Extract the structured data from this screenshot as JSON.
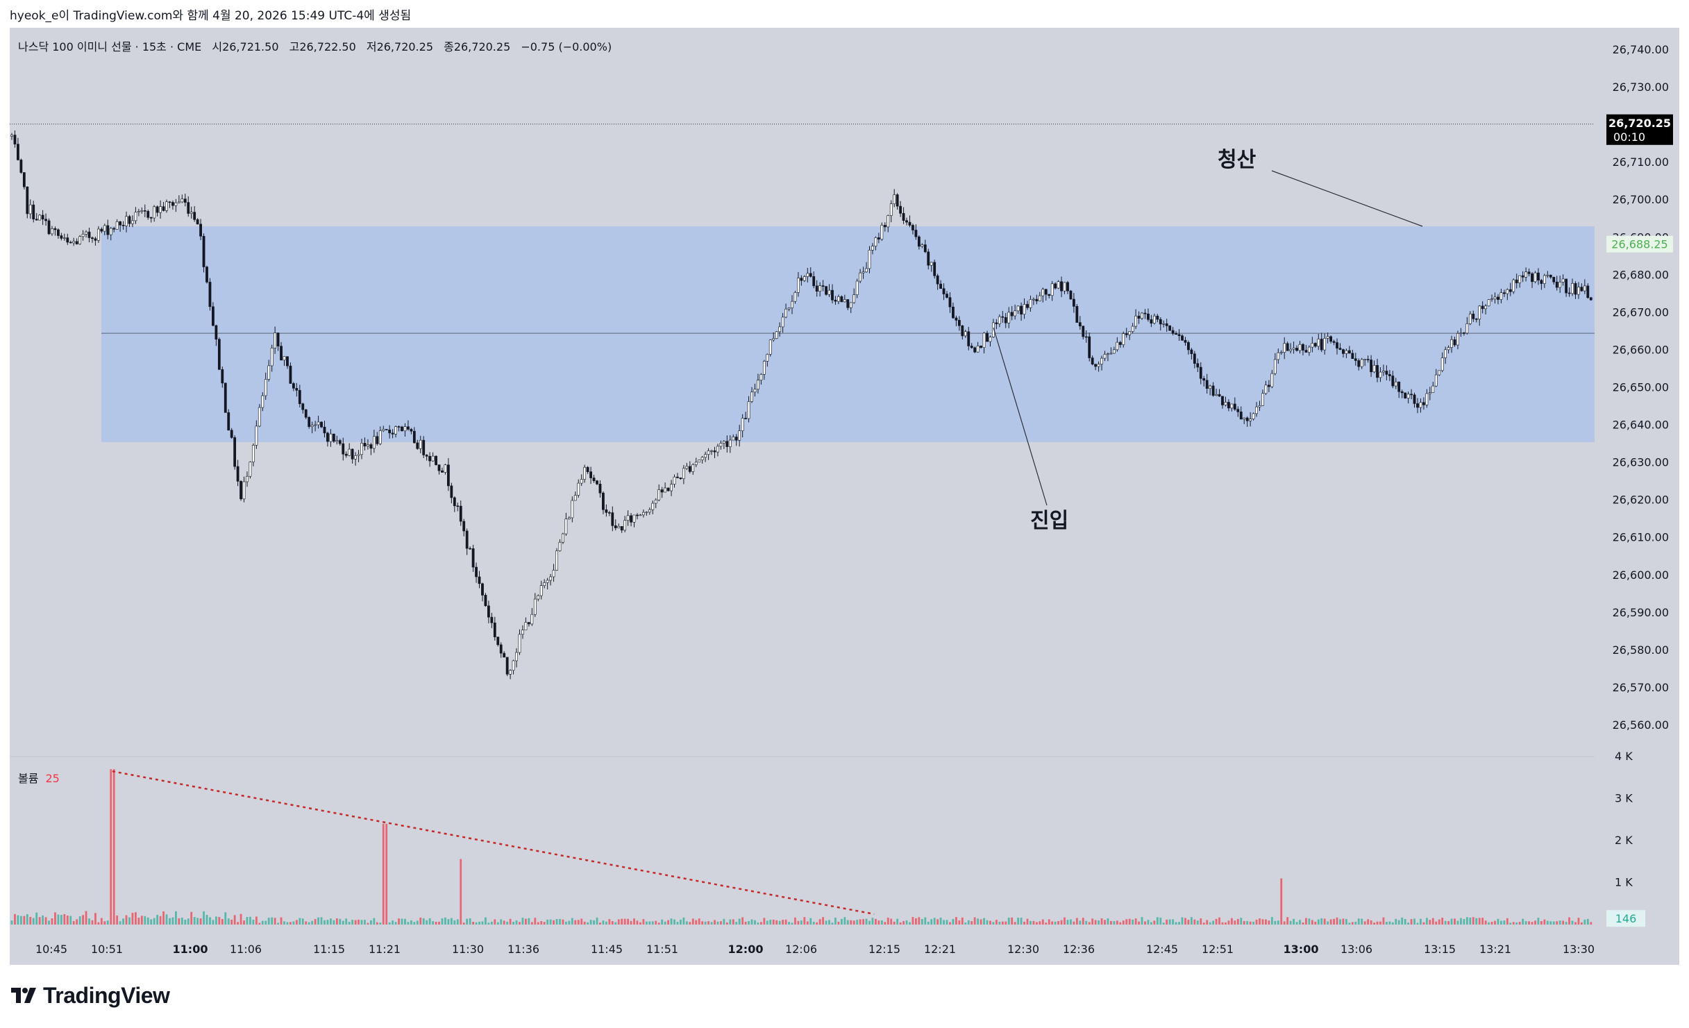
{
  "header": {
    "credit": "hyeok_e이 TradingView.com와 함께 4월 20, 2026 15:49 UTC-4에 생성됨"
  },
  "legend": {
    "title": "나스닥 100 이미니 선물 · 15초 · CME",
    "open": "시26,721.50",
    "high": "고26,722.50",
    "low": "저26,720.25",
    "close": "종26,720.25",
    "change": "−0.75 (−0.00%)"
  },
  "volume_legend": {
    "label": "볼륨",
    "value": "25"
  },
  "price_axis": {
    "labels": [
      "26,740.00",
      "26,730.00",
      "26,720.00",
      "26,710.00",
      "26,700.00",
      "26,690.00",
      "26,680.00",
      "26,670.00",
      "26,660.00",
      "26,650.00",
      "26,640.00",
      "26,630.00",
      "26,620.00",
      "26,610.00",
      "26,600.00",
      "26,590.00",
      "26,580.00",
      "26,570.00",
      "26,560.00"
    ],
    "current_price": "26,720.25",
    "countdown": "00:10",
    "secondary_price": "26,688.25"
  },
  "volume_axis": {
    "labels": [
      "4 K",
      "3 K",
      "2 K",
      "1 K"
    ],
    "current_volume": "146"
  },
  "time_axis": {
    "labels": [
      "10:45",
      "10:51",
      "11:00",
      "11:06",
      "11:15",
      "11:21",
      "11:30",
      "11:36",
      "11:45",
      "11:51",
      "12:00",
      "12:06",
      "12:15",
      "12:21",
      "12:30",
      "12:36",
      "12:45",
      "12:51",
      "13:00",
      "13:06",
      "13:15",
      "13:21",
      "13:30"
    ]
  },
  "annotations": {
    "exit_label": "청산",
    "entry_label": "진입"
  },
  "colors": {
    "background": "#d1d4dc",
    "zone_fill": "#b4c6e7",
    "candle_up": "#ffffff",
    "candle_down": "#131722",
    "volume_up": "#22ab94",
    "volume_down": "#f23645",
    "trendline": "#c62828",
    "price_badge": "#000000",
    "secondary_badge": "#4caf50"
  },
  "footer": {
    "brand": "TradingView",
    "brand_icon": "tradingview-logo-icon"
  },
  "chart_data": {
    "type": "candlestick",
    "symbol": "나스닥 100 이미니 선물",
    "interval": "15초",
    "exchange": "CME",
    "ylim": [
      26555,
      26743
    ],
    "volume_ylim": [
      0,
      4000
    ],
    "zone": {
      "top": 26693,
      "bottom": 26635.5,
      "mid": 26664.5
    },
    "last_price_line": 26720.25,
    "approx_path": [
      [
        0,
        26717
      ],
      [
        5,
        26698
      ],
      [
        18,
        26688
      ],
      [
        30,
        26692
      ],
      [
        55,
        26700
      ],
      [
        60,
        26695
      ],
      [
        69,
        26645
      ],
      [
        74,
        26620
      ],
      [
        85,
        26663
      ],
      [
        95,
        26642
      ],
      [
        110,
        26632
      ],
      [
        125,
        26640
      ],
      [
        140,
        26628
      ],
      [
        150,
        26600
      ],
      [
        160,
        26574
      ],
      [
        165,
        26585
      ],
      [
        175,
        26603
      ],
      [
        185,
        26630
      ],
      [
        195,
        26612
      ],
      [
        205,
        26618
      ],
      [
        220,
        26630
      ],
      [
        235,
        26638
      ],
      [
        245,
        26662
      ],
      [
        255,
        26680
      ],
      [
        270,
        26672
      ],
      [
        285,
        26700
      ],
      [
        295,
        26685
      ],
      [
        310,
        26660
      ],
      [
        320,
        26668
      ],
      [
        340,
        26678
      ],
      [
        350,
        26655
      ],
      [
        365,
        26670
      ],
      [
        377,
        26665
      ],
      [
        388,
        26648
      ],
      [
        400,
        26640
      ],
      [
        410,
        26660
      ],
      [
        425,
        26662
      ],
      [
        440,
        26655
      ],
      [
        455,
        26645
      ],
      [
        465,
        26662
      ],
      [
        475,
        26672
      ],
      [
        490,
        26680
      ],
      [
        510,
        26675
      ],
      [
        520,
        26662
      ],
      [
        530,
        26670
      ],
      [
        545,
        26683
      ],
      [
        555,
        26678
      ],
      [
        568,
        26672
      ],
      [
        580,
        26665
      ],
      [
        595,
        26675
      ],
      [
        610,
        26683
      ],
      [
        620,
        26690
      ],
      [
        630,
        26681
      ],
      [
        645,
        26670
      ],
      [
        655,
        26688
      ],
      [
        670,
        26685
      ],
      [
        690,
        26679
      ],
      [
        710,
        26677
      ],
      [
        730,
        26683
      ],
      [
        745,
        26672
      ],
      [
        758,
        26674
      ],
      [
        768,
        26665
      ],
      [
        775,
        26670
      ],
      [
        785,
        26675
      ],
      [
        800,
        26680
      ],
      [
        815,
        26684
      ],
      [
        835,
        26692
      ],
      [
        855,
        26700
      ],
      [
        870,
        26707
      ],
      [
        885,
        26705
      ],
      [
        895,
        26712
      ],
      [
        905,
        26712
      ],
      [
        915,
        26709
      ],
      [
        925,
        26700
      ],
      [
        938,
        26688
      ]
    ],
    "volume_spikes": [
      [
        65,
        3700
      ],
      [
        241,
        2400
      ],
      [
        290,
        1560
      ],
      [
        820,
        1100
      ]
    ],
    "trendline": {
      "from_time": "10:51",
      "from_volume": 3650,
      "to_time": "12:15",
      "to_volume": 250
    },
    "annotations": [
      {
        "text": "청산",
        "time": "13:13",
        "price": 26693
      },
      {
        "text": "진입",
        "time": "12:30",
        "price": 26666
      }
    ]
  }
}
